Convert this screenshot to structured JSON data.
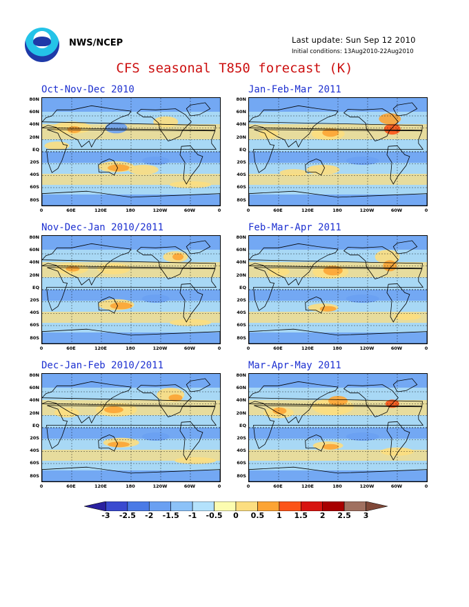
{
  "header": {
    "org": "NWS/NCEP",
    "last_update": "Last update: Sun Sep 12 2010",
    "initial_conditions": "Initial conditions: 13Aug2010-22Aug2010",
    "title": "CFS seasonal T850 forecast (K)"
  },
  "panels": [
    {
      "title": "Oct-Nov-Dec 2010"
    },
    {
      "title": "Jan-Feb-Mar 2011"
    },
    {
      "title": "Nov-Dec-Jan 2010/2011"
    },
    {
      "title": "Feb-Mar-Apr 2011"
    },
    {
      "title": "Dec-Jan-Feb 2010/2011"
    },
    {
      "title": "Mar-Apr-May 2011"
    }
  ],
  "map_axes": {
    "lat_labels": [
      "80N",
      "60N",
      "40N",
      "20N",
      "EQ",
      "20S",
      "40S",
      "60S",
      "80S"
    ],
    "lon_labels": [
      "0",
      "60E",
      "120E",
      "180",
      "120W",
      "60W",
      "0"
    ]
  },
  "colorbar": {
    "labels": [
      "-3",
      "-2.5",
      "-2",
      "-1.5",
      "-1",
      "-0.5",
      "0",
      "0.5",
      "1",
      "1.5",
      "2",
      "2.5",
      "3"
    ],
    "colors": [
      "#2a20a0",
      "#3a4ad0",
      "#4a7ae6",
      "#6aa0f2",
      "#8cc2f8",
      "#b4e2fc",
      "#fcfcb0",
      "#fcde80",
      "#fca434",
      "#fc5418",
      "#d81410",
      "#a80000",
      "#a07060",
      "#804838"
    ]
  },
  "palette": {
    "ocean_cool": "#a8d8f4",
    "cool": "#6aa0f2",
    "warm": "#fcde80",
    "orange": "#fca434",
    "red": "#fc5418"
  }
}
